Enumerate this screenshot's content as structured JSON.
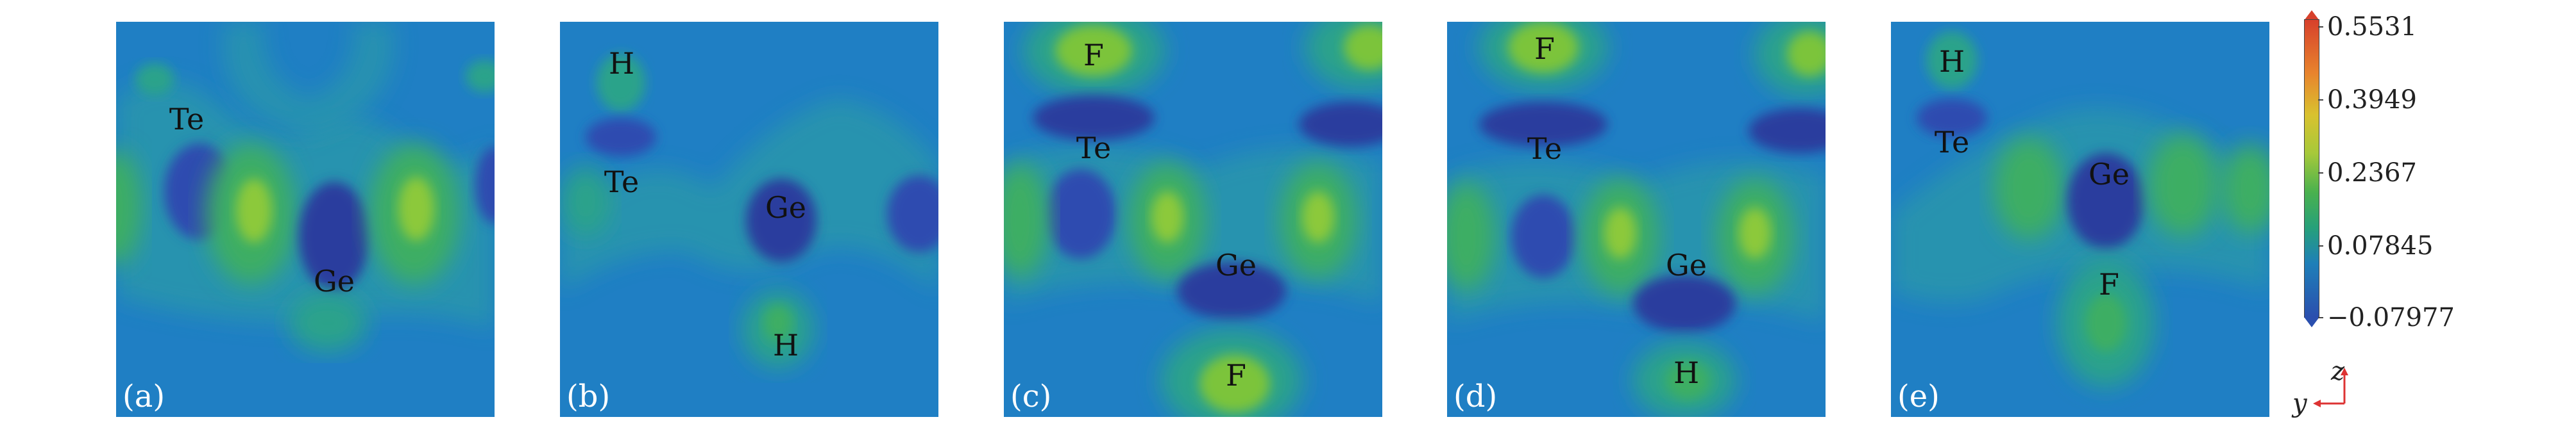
{
  "panels": [
    {
      "tag": "(a)",
      "labels": [
        "Te",
        "Ge"
      ]
    },
    {
      "tag": "(b)",
      "labels": [
        "H",
        "Te",
        "Ge",
        "H"
      ]
    },
    {
      "tag": "(c)",
      "labels": [
        "F",
        "Te",
        "Ge",
        "F"
      ]
    },
    {
      "tag": "(d)",
      "labels": [
        "F",
        "Te",
        "Ge",
        "H"
      ]
    },
    {
      "tag": "(e)",
      "labels": [
        "H",
        "Te",
        "Ge",
        "F"
      ]
    }
  ],
  "colorbar": {
    "ticks": [
      "0.5531",
      "0.3949",
      "0.2367",
      "0.07845",
      "−0.07977"
    ],
    "colors": [
      "#d7402b",
      "#e8842d",
      "#d9c22f",
      "#a6c93a",
      "#4ab14e",
      "#26a07a",
      "#1f7fb8",
      "#2a4fae"
    ]
  },
  "axes": {
    "z": "z",
    "y": "y"
  }
}
